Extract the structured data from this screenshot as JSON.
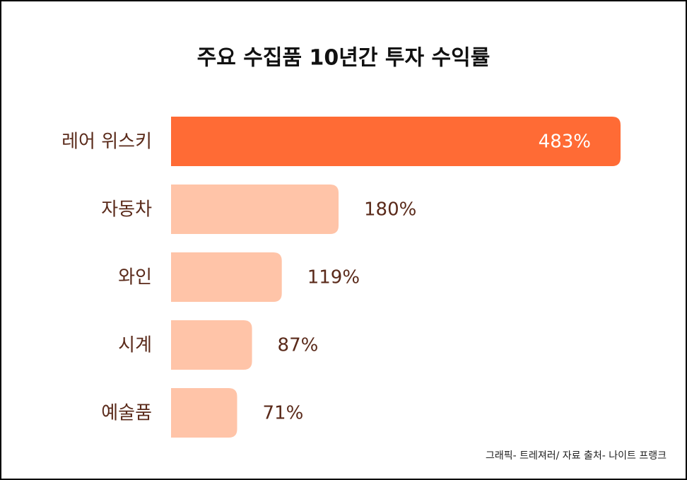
{
  "chart_data": {
    "type": "bar",
    "orientation": "horizontal",
    "title": "주요 수집품 10년간 투자 수익률",
    "categories": [
      "레어 위스키",
      "자동차",
      "와인",
      "시계",
      "예술품"
    ],
    "values": [
      483,
      180,
      119,
      87,
      71
    ],
    "value_labels": [
      "483%",
      "180%",
      "119%",
      "87%",
      "71%"
    ],
    "colors": [
      "#ff6b35",
      "#ffc4a8",
      "#ffc4a8",
      "#ffc4a8",
      "#ffc4a8"
    ],
    "source": "그래픽- 트레져러/ 자료 출처- 나이트 프랭크"
  }
}
